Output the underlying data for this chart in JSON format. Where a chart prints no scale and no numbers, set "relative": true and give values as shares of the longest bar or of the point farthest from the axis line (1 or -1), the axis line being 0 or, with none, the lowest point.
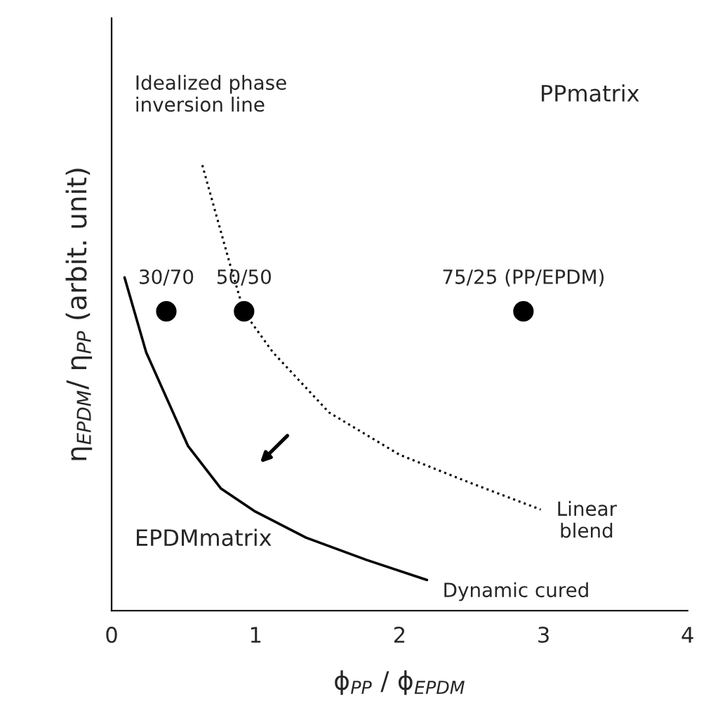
{
  "chart_data": {
    "type": "line",
    "relative": true,
    "xlabel": "ϕ$_{PP}$ / ϕ$_{EPDM}$",
    "ylabel": "η$_{EPDM}$/ η$_{PP}$ (arbit. unit)",
    "xlim": [
      0,
      4
    ],
    "xticks": [
      0,
      1,
      2,
      3,
      4
    ],
    "grid": false,
    "legend": false,
    "series": [
      {
        "name": "Dynamic cured",
        "line_style": "solid",
        "marker": "none",
        "color": "#000000",
        "x": [
          0.09,
          0.24,
          0.53,
          0.76,
          0.99,
          1.35,
          1.77,
          2.19
        ],
        "values": [
          0.748,
          0.58,
          0.37,
          0.274,
          0.224,
          0.164,
          0.114,
          0.069
        ]
      },
      {
        "name": "Linear\nblend",
        "line_style": "dotted",
        "marker": "none",
        "color": "#000000",
        "x": [
          0.63,
          0.82,
          0.92,
          1.12,
          1.51,
          2.0,
          2.49,
          2.98
        ],
        "values": [
          1.0,
          0.78,
          0.67,
          0.58,
          0.445,
          0.35,
          0.287,
          0.227
        ]
      },
      {
        "type": "scatter",
        "marker": "circle",
        "color": "#000000",
        "x": [
          0.38,
          0.92,
          2.86
        ],
        "values": [
          0.672,
          0.672,
          0.672
        ]
      }
    ],
    "annotations": [
      {
        "text": "30/70",
        "x": 0.38,
        "y": 0.672
      },
      {
        "text": "50/50",
        "x": 0.92,
        "y": 0.672
      },
      {
        "text": "75/25 (PP/EPDM)",
        "x": 2.86,
        "y": 0.672
      },
      "Idealized phase\ninversion line",
      "PPmatrix",
      "EPDMmatrix"
    ]
  }
}
